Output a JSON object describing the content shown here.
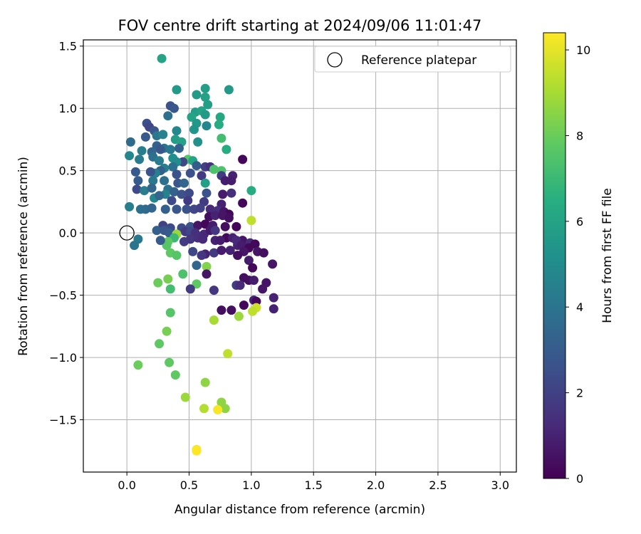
{
  "chart_data": {
    "type": "scatter",
    "title": "FOV centre drift starting at 2024/09/06 11:01:47",
    "xlabel": "Angular distance from reference (arcmin)",
    "ylabel": "Rotation from reference (arcmin)",
    "xlim": [
      -0.35,
      3.13
    ],
    "ylim": [
      -1.92,
      1.55
    ],
    "xticks": [
      0.0,
      0.5,
      1.0,
      1.5,
      2.0,
      2.5,
      3.0
    ],
    "xtick_labels": [
      "0.0",
      "0.5",
      "1.0",
      "1.5",
      "2.0",
      "2.5",
      "3.0"
    ],
    "yticks": [
      -1.5,
      -1.0,
      -0.5,
      0.0,
      0.5,
      1.0,
      1.5
    ],
    "ytick_labels": [
      "−1.5",
      "−1.0",
      "−0.5",
      "0.0",
      "0.5",
      "1.0",
      "1.5"
    ],
    "grid": true,
    "legend": {
      "position": "top-right",
      "entries": [
        "Reference platepar"
      ]
    },
    "reference_point": {
      "x": 0.0,
      "y": 0.0
    },
    "colorbar": {
      "label": "Hours from first FF file",
      "min": 0,
      "max": 10.4,
      "ticks": [
        0,
        2,
        4,
        6,
        8,
        10
      ],
      "tick_labels": [
        "0",
        "2",
        "4",
        "6",
        "8",
        "10"
      ],
      "colormap": "viridis"
    },
    "points": [
      [
        0.28,
        1.4,
        6.0
      ],
      [
        0.4,
        1.15,
        5.6
      ],
      [
        0.56,
        1.11,
        5.6
      ],
      [
        0.63,
        1.16,
        5.8
      ],
      [
        0.82,
        1.15,
        5.6
      ],
      [
        0.63,
        1.09,
        5.9
      ],
      [
        0.35,
        1.02,
        2.6
      ],
      [
        0.38,
        1.0,
        2.8
      ],
      [
        0.65,
        1.03,
        5.8
      ],
      [
        0.55,
        0.97,
        5.7
      ],
      [
        0.6,
        0.98,
        6.0
      ],
      [
        0.75,
        0.93,
        6.2
      ],
      [
        0.33,
        0.94,
        3.8
      ],
      [
        0.16,
        0.88,
        2.5
      ],
      [
        0.18,
        0.85,
        2.2
      ],
      [
        0.52,
        0.93,
        6.0
      ],
      [
        0.63,
        0.95,
        5.6
      ],
      [
        0.56,
        0.88,
        5.5
      ],
      [
        0.74,
        0.87,
        6.4
      ],
      [
        0.64,
        0.86,
        4.8
      ],
      [
        0.54,
        0.83,
        5.4
      ],
      [
        0.4,
        0.82,
        4.8
      ],
      [
        0.22,
        0.82,
        2.8
      ],
      [
        0.15,
        0.77,
        2.9
      ],
      [
        0.24,
        0.78,
        4.1
      ],
      [
        0.29,
        0.79,
        4.6
      ],
      [
        0.76,
        0.76,
        7.2
      ],
      [
        0.39,
        0.75,
        5.7
      ],
      [
        0.57,
        0.73,
        5.2
      ],
      [
        0.03,
        0.73,
        3.6
      ],
      [
        0.44,
        0.73,
        5.9
      ],
      [
        0.24,
        0.7,
        3.3
      ],
      [
        0.3,
        0.68,
        4.0
      ],
      [
        0.35,
        0.67,
        4.2
      ],
      [
        0.12,
        0.66,
        4.4
      ],
      [
        0.27,
        0.67,
        2.8
      ],
      [
        0.42,
        0.68,
        3.3
      ],
      [
        0.2,
        0.65,
        3.4
      ],
      [
        0.8,
        0.67,
        6.4
      ],
      [
        0.02,
        0.62,
        4.8
      ],
      [
        0.1,
        0.59,
        4.3
      ],
      [
        0.21,
        0.61,
        3.8
      ],
      [
        0.26,
        0.58,
        4.3
      ],
      [
        0.37,
        0.6,
        5.1
      ],
      [
        0.49,
        0.59,
        7.6
      ],
      [
        0.53,
        0.58,
        6.0
      ],
      [
        0.45,
        0.57,
        2.2
      ],
      [
        0.4,
        0.57,
        5.0
      ],
      [
        0.56,
        0.54,
        3.0
      ],
      [
        0.63,
        0.53,
        2.0
      ],
      [
        0.67,
        0.53,
        1.4
      ],
      [
        0.7,
        0.51,
        7.4
      ],
      [
        0.76,
        0.5,
        7.4
      ],
      [
        0.93,
        0.59,
        0.2
      ],
      [
        0.37,
        0.53,
        3.8
      ],
      [
        0.3,
        0.52,
        4.4
      ],
      [
        0.27,
        0.5,
        3.2
      ],
      [
        0.23,
        0.48,
        4.5
      ],
      [
        0.19,
        0.49,
        2.7
      ],
      [
        0.07,
        0.49,
        2.9
      ],
      [
        0.4,
        0.47,
        2.6
      ],
      [
        0.51,
        0.48,
        2.6
      ],
      [
        0.6,
        0.46,
        1.8
      ],
      [
        0.76,
        0.46,
        1.8
      ],
      [
        0.85,
        0.46,
        1.0
      ],
      [
        0.09,
        0.42,
        3.0
      ],
      [
        0.21,
        0.42,
        4.1
      ],
      [
        0.3,
        0.42,
        3.8
      ],
      [
        0.41,
        0.4,
        2.8
      ],
      [
        0.46,
        0.4,
        3.4
      ],
      [
        0.63,
        0.4,
        5.8
      ],
      [
        0.79,
        0.42,
        0.8
      ],
      [
        0.84,
        0.42,
        0.8
      ],
      [
        0.08,
        0.35,
        2.4
      ],
      [
        0.14,
        0.34,
        4.4
      ],
      [
        0.2,
        0.36,
        3.4
      ],
      [
        0.33,
        0.35,
        3.9
      ],
      [
        0.38,
        0.33,
        3.2
      ],
      [
        0.31,
        0.31,
        4.6
      ],
      [
        0.44,
        0.31,
        2.6
      ],
      [
        0.5,
        0.32,
        2.4
      ],
      [
        0.64,
        0.32,
        2.6
      ],
      [
        0.77,
        0.31,
        0.8
      ],
      [
        0.84,
        0.32,
        1.4
      ],
      [
        1.0,
        0.34,
        6.4
      ],
      [
        0.22,
        0.28,
        4.8
      ],
      [
        0.26,
        0.3,
        3.4
      ],
      [
        0.36,
        0.26,
        2.4
      ],
      [
        0.49,
        0.26,
        1.8
      ],
      [
        0.62,
        0.25,
        1.8
      ],
      [
        0.76,
        0.23,
        1.0
      ],
      [
        0.93,
        0.24,
        0.2
      ],
      [
        0.02,
        0.21,
        4.4
      ],
      [
        0.11,
        0.19,
        3.8
      ],
      [
        0.15,
        0.19,
        3.6
      ],
      [
        0.2,
        0.2,
        3.4
      ],
      [
        0.31,
        0.19,
        3.2
      ],
      [
        0.4,
        0.19,
        2.8
      ],
      [
        0.48,
        0.19,
        2.6
      ],
      [
        0.54,
        0.19,
        2.2
      ],
      [
        0.59,
        0.2,
        2.0
      ],
      [
        0.67,
        0.19,
        1.2
      ],
      [
        0.73,
        0.18,
        1.4
      ],
      [
        0.78,
        0.17,
        0.6
      ],
      [
        0.82,
        0.15,
        0.2
      ],
      [
        0.66,
        0.13,
        0.4
      ],
      [
        0.71,
        0.14,
        1.0
      ],
      [
        0.77,
        0.14,
        0.6
      ],
      [
        0.82,
        0.12,
        0.4
      ],
      [
        1.0,
        0.1,
        9.4
      ],
      [
        0.29,
        0.06,
        2.0
      ],
      [
        0.35,
        0.04,
        2.4
      ],
      [
        0.44,
        0.04,
        2.4
      ],
      [
        0.51,
        0.05,
        2.6
      ],
      [
        0.57,
        0.06,
        0.6
      ],
      [
        0.63,
        0.07,
        0.2
      ],
      [
        0.69,
        0.06,
        0.8
      ],
      [
        0.79,
        0.05,
        0.4
      ],
      [
        0.88,
        0.05,
        0.2
      ],
      [
        0.24,
        0.02,
        3.2
      ],
      [
        0.3,
        0.02,
        2.8
      ],
      [
        0.34,
        0.0,
        3.0
      ],
      [
        0.4,
        -0.01,
        2.8
      ],
      [
        0.47,
        0.01,
        1.8
      ],
      [
        0.51,
        0.01,
        2.2
      ],
      [
        0.55,
        0.0,
        1.4
      ],
      [
        0.62,
        -0.01,
        1.2
      ],
      [
        0.67,
        0.02,
        0.8
      ],
      [
        0.71,
        0.02,
        1.6
      ],
      [
        0.8,
        -0.04,
        0.2
      ],
      [
        0.85,
        -0.04,
        1.0
      ],
      [
        0.93,
        -0.06,
        0.6
      ],
      [
        0.99,
        -0.08,
        1.2
      ],
      [
        1.03,
        -0.09,
        0.2
      ],
      [
        0.4,
        -0.01,
        8.8
      ],
      [
        0.38,
        -0.04,
        7.0
      ],
      [
        0.33,
        -0.07,
        7.8
      ],
      [
        0.32,
        -0.1,
        7.6
      ],
      [
        0.09,
        -0.05,
        4.2
      ],
      [
        0.06,
        -0.1,
        4.0
      ],
      [
        0.27,
        -0.06,
        3.0
      ],
      [
        0.46,
        -0.07,
        1.8
      ],
      [
        0.51,
        -0.05,
        1.6
      ],
      [
        0.57,
        -0.04,
        1.4
      ],
      [
        0.61,
        -0.05,
        1.2
      ],
      [
        0.71,
        -0.06,
        1.0
      ],
      [
        0.75,
        -0.06,
        0.8
      ],
      [
        0.89,
        -0.1,
        1.0
      ],
      [
        0.88,
        -0.06,
        1.2
      ],
      [
        0.92,
        -0.1,
        0.8
      ],
      [
        0.98,
        -0.12,
        0.2
      ],
      [
        0.35,
        -0.16,
        7.8
      ],
      [
        0.4,
        -0.18,
        7.6
      ],
      [
        0.53,
        -0.15,
        2.2
      ],
      [
        0.63,
        -0.17,
        1.0
      ],
      [
        0.7,
        -0.16,
        1.8
      ],
      [
        0.76,
        -0.14,
        0.8
      ],
      [
        0.83,
        -0.14,
        1.0
      ],
      [
        0.94,
        -0.15,
        0.6
      ],
      [
        1.05,
        -0.15,
        0.6
      ],
      [
        1.1,
        -0.16,
        0.4
      ],
      [
        0.89,
        -0.18,
        0.4
      ],
      [
        0.98,
        -0.22,
        0.8
      ],
      [
        0.6,
        -0.18,
        1.6
      ],
      [
        1.01,
        -0.28,
        0.2
      ],
      [
        1.17,
        -0.25,
        0.6
      ],
      [
        0.56,
        -0.26,
        3.4
      ],
      [
        0.64,
        -0.27,
        8.4
      ],
      [
        0.64,
        -0.33,
        0.6
      ],
      [
        0.45,
        -0.33,
        7.4
      ],
      [
        0.33,
        -0.37,
        8.2
      ],
      [
        0.94,
        -0.36,
        0.4
      ],
      [
        0.98,
        -0.38,
        0.4
      ],
      [
        1.02,
        -0.38,
        0.8
      ],
      [
        0.25,
        -0.4,
        8.0
      ],
      [
        0.56,
        -0.41,
        7.8
      ],
      [
        0.88,
        -0.42,
        1.8
      ],
      [
        0.91,
        -0.42,
        1.2
      ],
      [
        1.12,
        -0.4,
        0.6
      ],
      [
        0.35,
        -0.45,
        7.2
      ],
      [
        0.51,
        -0.45,
        1.8
      ],
      [
        0.7,
        -0.46,
        1.6
      ],
      [
        1.02,
        -0.54,
        1.0
      ],
      [
        1.09,
        -0.45,
        0.6
      ],
      [
        1.04,
        -0.55,
        0.2
      ],
      [
        1.18,
        -0.52,
        1.0
      ],
      [
        0.94,
        -0.58,
        0.2
      ],
      [
        1.04,
        -0.6,
        9.6
      ],
      [
        1.01,
        -0.63,
        9.4
      ],
      [
        1.18,
        -0.61,
        1.0
      ],
      [
        0.76,
        -0.62,
        0.4
      ],
      [
        0.84,
        -0.62,
        0.4
      ],
      [
        0.35,
        -0.64,
        7.6
      ],
      [
        0.9,
        -0.67,
        8.8
      ],
      [
        0.7,
        -0.7,
        9.0
      ],
      [
        0.32,
        -0.79,
        8.2
      ],
      [
        0.26,
        -0.89,
        7.8
      ],
      [
        0.81,
        -0.97,
        9.4
      ],
      [
        0.09,
        -1.06,
        8.0
      ],
      [
        0.34,
        -1.04,
        7.8
      ],
      [
        0.39,
        -1.14,
        7.8
      ],
      [
        0.63,
        -1.2,
        8.6
      ],
      [
        0.47,
        -1.32,
        8.8
      ],
      [
        0.76,
        -1.36,
        8.6
      ],
      [
        0.79,
        -1.41,
        8.6
      ],
      [
        0.62,
        -1.41,
        9.2
      ],
      [
        0.73,
        -1.42,
        10.3
      ],
      [
        0.56,
        -1.74,
        10.2
      ],
      [
        0.56,
        -1.75,
        10.4
      ]
    ]
  }
}
